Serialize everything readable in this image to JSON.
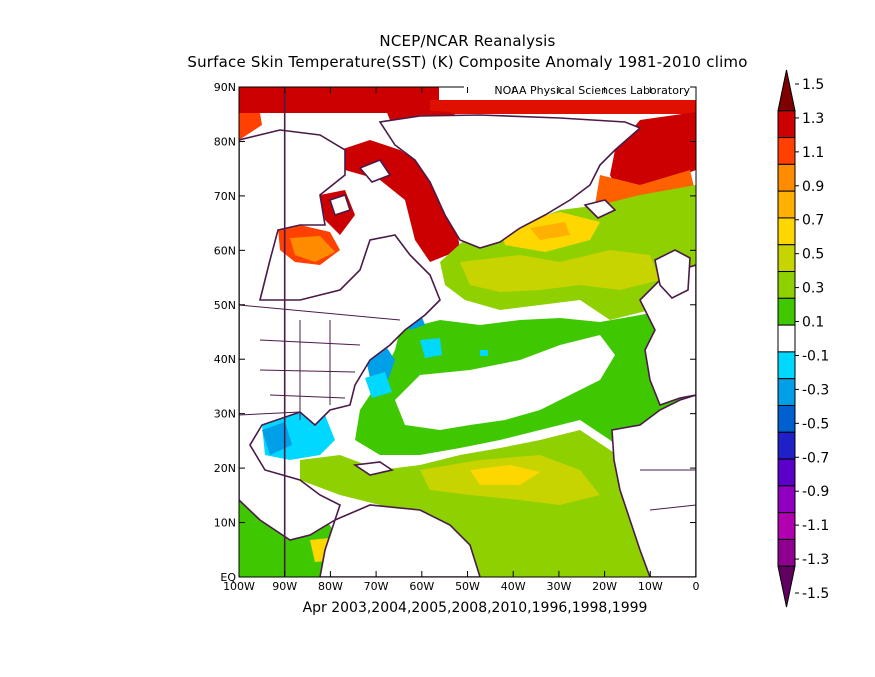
{
  "title_line1": "NCEP/NCAR Reanalysis",
  "title_line2": "Surface Skin Temperature(SST) (K) Composite Anomaly 1981-2010 climo",
  "credit": "NOAA Physical Sciences Laboratory",
  "caption": "Apr 2003,2004,2005,2008,2010,1996,1998,1999",
  "map": {
    "lat_ticks": [
      "EQ",
      "10N",
      "20N",
      "30N",
      "40N",
      "50N",
      "60N",
      "70N",
      "80N",
      "90N"
    ],
    "lon_ticks": [
      "100W",
      "90W",
      "80W",
      "70W",
      "60W",
      "50W",
      "40W",
      "30W",
      "20W",
      "10W",
      "0"
    ],
    "lat_range": [
      0,
      90
    ],
    "lon_range": [
      -100,
      0
    ],
    "highlighted_meridian": "90W"
  },
  "colorbar": {
    "labels": [
      "1.5",
      "1.3",
      "1.1",
      "0.9",
      "0.7",
      "0.5",
      "0.3",
      "0.1",
      "-0.1",
      "-0.3",
      "-0.5",
      "-0.7",
      "-0.9",
      "-1.1",
      "-1.3",
      "-1.5"
    ],
    "colors": [
      "#7f0000",
      "#cc0000",
      "#ff4000",
      "#ff8c00",
      "#ffb000",
      "#ffd700",
      "#c8d400",
      "#8fd000",
      "#3fc800",
      "#ffffff",
      "#00d8ff",
      "#00a0e8",
      "#0060d0",
      "#2020c8",
      "#5a00c8",
      "#9000c0",
      "#b000b0",
      "#900090",
      "#600060"
    ]
  }
}
